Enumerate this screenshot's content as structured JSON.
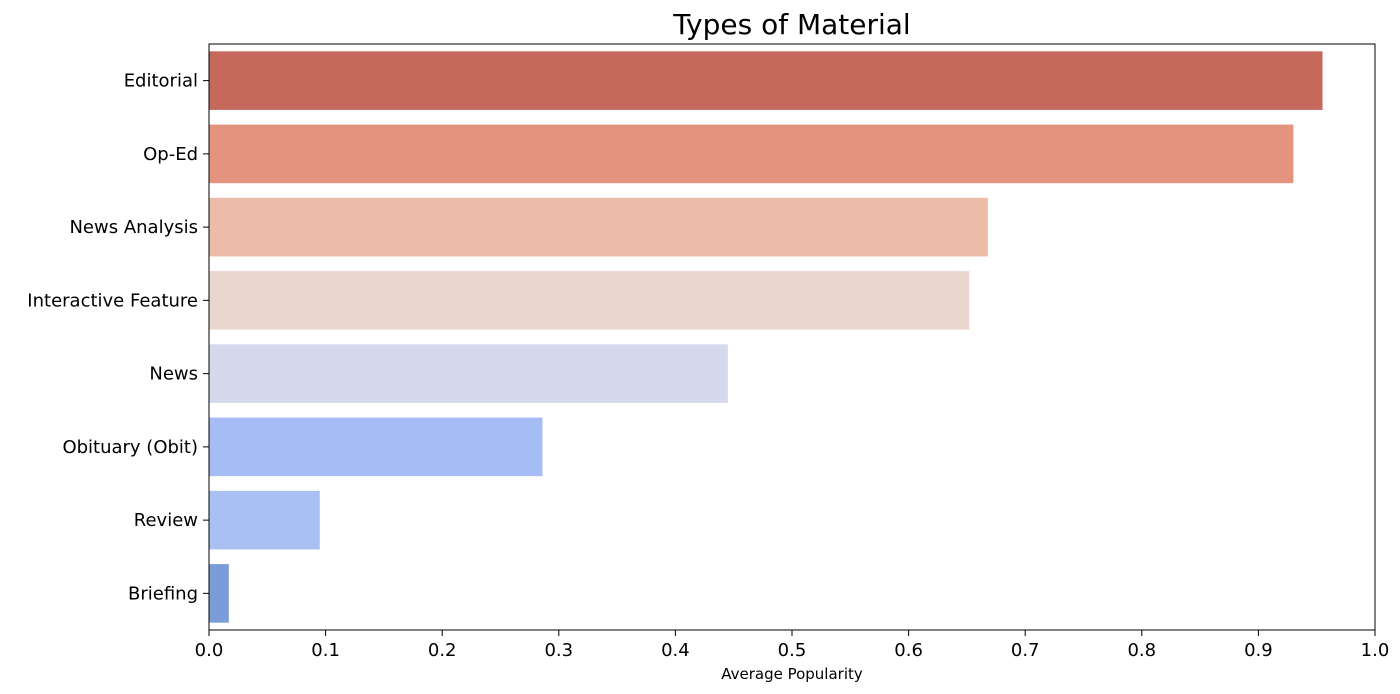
{
  "chart_data": {
    "type": "bar",
    "orientation": "horizontal",
    "title": "Types of Material",
    "xlabel": "Average Popularity",
    "ylabel": "",
    "categories": [
      "Editorial",
      "Op-Ed",
      "News Analysis",
      "Interactive Feature",
      "News",
      "Obituary (Obit)",
      "Review",
      "Briefing"
    ],
    "values": [
      0.955,
      0.93,
      0.668,
      0.652,
      0.445,
      0.286,
      0.095,
      0.017
    ],
    "colors": [
      "#c5695c",
      "#e4947e",
      "#edbca8",
      "#e8d6cf",
      "#d4d9ec",
      "#a5bdf4",
      "#aac0f2",
      "#7c9bd9"
    ],
    "xlim": [
      0.0,
      1.0
    ],
    "xticks": [
      "0.0",
      "0.1",
      "0.2",
      "0.3",
      "0.4",
      "0.5",
      "0.6",
      "0.7",
      "0.8",
      "0.9",
      "1.0"
    ],
    "grid": false,
    "legend": "none"
  }
}
